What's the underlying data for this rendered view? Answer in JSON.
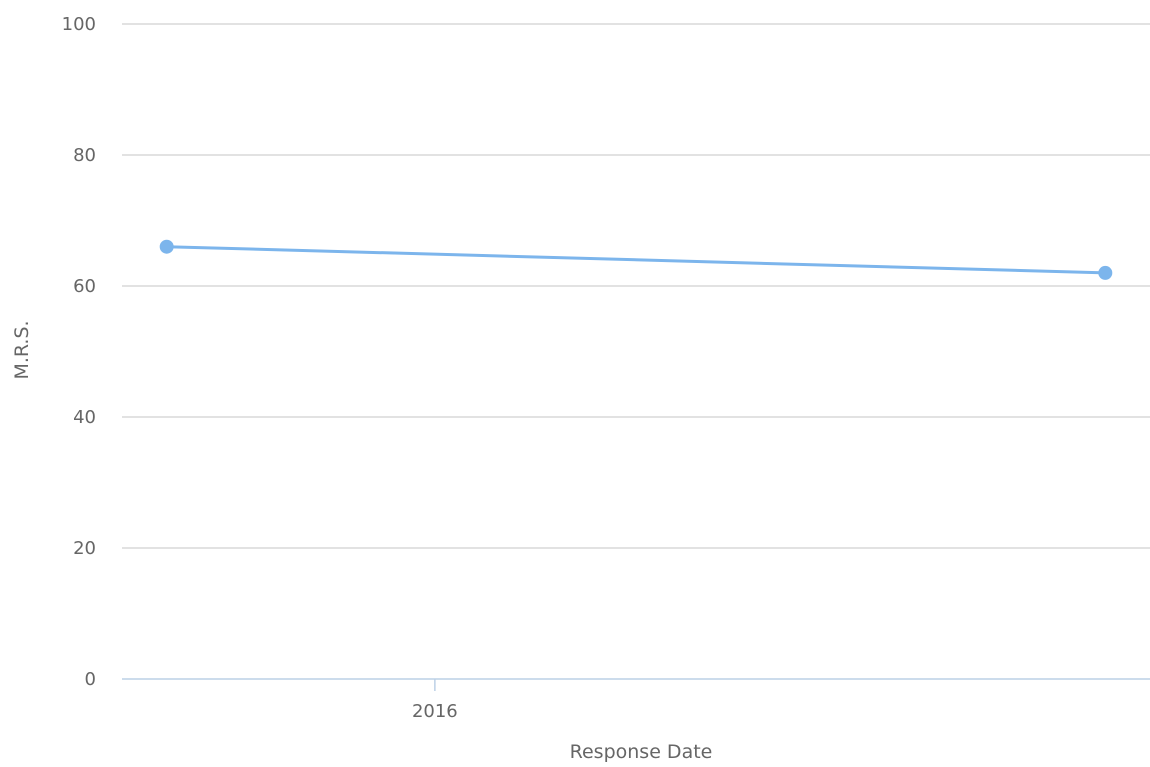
{
  "chart_data": {
    "type": "line",
    "title": "",
    "xlabel": "Response Date",
    "ylabel": "M.R.S.",
    "ylim": [
      0,
      100
    ],
    "yticks": [
      0,
      20,
      40,
      60,
      80,
      100
    ],
    "xticks": [
      "2016"
    ],
    "grid": true,
    "legend": "none",
    "colors": {
      "series": "#7cb5ec",
      "grid": "#d8d8d8",
      "axis": "#bcd0e6",
      "text": "#666666"
    },
    "series": [
      {
        "x": [
          "2015-07",
          "2017-04"
        ],
        "values": [
          66,
          62
        ]
      }
    ]
  }
}
